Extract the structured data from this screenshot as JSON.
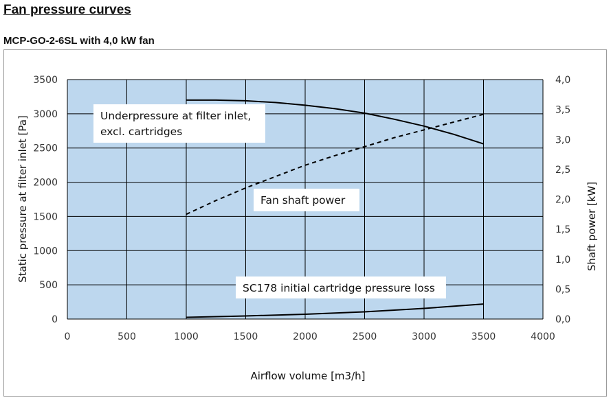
{
  "page": {
    "heading": "Fan pressure curves",
    "subheading": "MCP-GO-2-6SL with 4,0 kW fan"
  },
  "chart_data": {
    "type": "line",
    "title": "",
    "xlabel": "Airflow volume [m3/h]",
    "ylabel": "Static pressure at filter inlet [Pa]",
    "y2label": "Shaft power [kW]",
    "xlim": [
      0,
      4000
    ],
    "ylim": [
      0,
      3500
    ],
    "y2lim": [
      0,
      4.0
    ],
    "x_ticks": [
      "0",
      "500",
      "1000",
      "1500",
      "2000",
      "2500",
      "3000",
      "3500",
      "4000"
    ],
    "y_ticks": [
      "0",
      "500",
      "1000",
      "1500",
      "2000",
      "2500",
      "3000",
      "3500"
    ],
    "y2_ticks": [
      "0,0",
      "0,5",
      "1,0",
      "1,5",
      "2,0",
      "2,5",
      "3,0",
      "3,5",
      "4,0"
    ],
    "grid": true,
    "plot_background": "#bdd7ee",
    "series": [
      {
        "name": "Underpressure at filter inlet, excl. cartridges",
        "axis": "left",
        "style": "solid",
        "color": "#000000",
        "x": [
          1000,
          1250,
          1500,
          1750,
          2000,
          2250,
          2500,
          2750,
          3000,
          3250,
          3500
        ],
        "y": [
          3200,
          3200,
          3190,
          3165,
          3125,
          3075,
          3010,
          2920,
          2820,
          2700,
          2560
        ]
      },
      {
        "name": "Fan shaft power",
        "axis": "right",
        "style": "dashed",
        "color": "#000000",
        "x": [
          1000,
          1250,
          1500,
          1750,
          2000,
          2250,
          2500,
          2750,
          3000,
          3250,
          3500
        ],
        "y": [
          1.75,
          1.98,
          2.19,
          2.38,
          2.57,
          2.73,
          2.88,
          3.03,
          3.16,
          3.29,
          3.42
        ]
      },
      {
        "name": "SC178 initial cartridge pressure loss",
        "axis": "left",
        "style": "solid",
        "color": "#000000",
        "x": [
          1000,
          1500,
          2000,
          2500,
          3000,
          3500
        ],
        "y": [
          25,
          45,
          70,
          105,
          155,
          220
        ]
      }
    ],
    "annotations": [
      {
        "lines": [
          "Underpressure at filter inlet,",
          "excl. cartridges"
        ]
      },
      {
        "lines": [
          "Fan shaft power"
        ]
      },
      {
        "lines": [
          "SC178 initial cartridge pressure loss"
        ]
      }
    ]
  }
}
